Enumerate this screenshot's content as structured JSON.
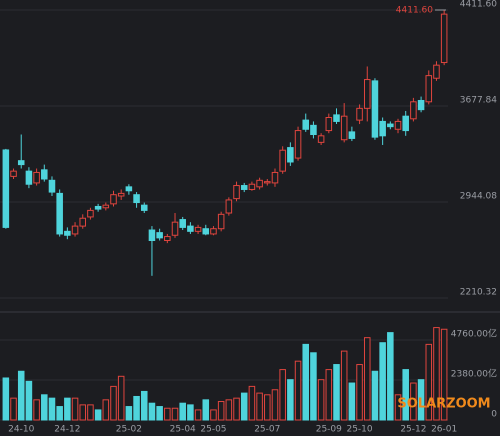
{
  "chart_data": {
    "type": "candlestick",
    "categories": [
      null,
      null,
      "24-10",
      null,
      null,
      null,
      null,
      null,
      "24-12",
      null,
      null,
      null,
      null,
      null,
      null,
      null,
      "25-02",
      null,
      null,
      null,
      null,
      null,
      null,
      "25-04",
      null,
      null,
      null,
      "25-05",
      null,
      null,
      null,
      null,
      null,
      null,
      "25-07",
      null,
      null,
      null,
      null,
      null,
      null,
      null,
      "25-09",
      null,
      null,
      null,
      "25-10",
      null,
      null,
      null,
      null,
      null,
      null,
      "25-12",
      null,
      null,
      null,
      "26-01"
    ],
    "open": [
      3342,
      3140,
      3260,
      3180,
      3090,
      3190,
      3110,
      3010,
      2720,
      2700,
      2760,
      2830,
      2910,
      2900,
      2930,
      2990,
      3060,
      3000,
      2920,
      2730,
      2710,
      2650,
      2690,
      2810,
      2760,
      2720,
      2740,
      2700,
      2740,
      2860,
      2970,
      3070,
      3040,
      3060,
      3090,
      3090,
      3180,
      3360,
      3280,
      3570,
      3530,
      3400,
      3490,
      3610,
      3420,
      3480,
      3570,
      3660,
      3870,
      3560,
      3540,
      3500,
      3600,
      3580,
      3720,
      3710,
      3890,
      4010
    ],
    "high": [
      3350,
      3200,
      3460,
      3210,
      3200,
      3230,
      3140,
      3040,
      2750,
      2790,
      2850,
      2900,
      2930,
      2940,
      3030,
      3040,
      3080,
      3020,
      2940,
      2760,
      2740,
      2700,
      2860,
      2830,
      2790,
      2770,
      2770,
      2760,
      2870,
      2980,
      3100,
      3090,
      3100,
      3130,
      3120,
      3200,
      3370,
      3400,
      3520,
      3620,
      3560,
      3470,
      3620,
      3660,
      3700,
      3520,
      3690,
      3980,
      3890,
      3590,
      3560,
      3580,
      3640,
      3740,
      3750,
      3950,
      4020,
      4411.6
    ],
    "low": [
      2740,
      3120,
      3200,
      3050,
      3070,
      3100,
      2990,
      2680,
      2660,
      2680,
      2740,
      2810,
      2870,
      2880,
      2910,
      2960,
      3000,
      2900,
      2860,
      2380,
      2650,
      2630,
      2670,
      2730,
      2700,
      2700,
      2690,
      2690,
      2720,
      2840,
      2950,
      3020,
      3030,
      3040,
      3070,
      3060,
      3160,
      3220,
      3260,
      3480,
      3430,
      3380,
      3470,
      3540,
      3400,
      3410,
      3540,
      3560,
      3420,
      3380,
      3500,
      3470,
      3450,
      3560,
      3630,
      3690,
      3870,
      3990
    ],
    "close": [
      2750,
      3180,
      3230,
      3080,
      3170,
      3120,
      3020,
      2700,
      2690,
      2760,
      2820,
      2880,
      2890,
      2920,
      3000,
      3010,
      3030,
      2940,
      2880,
      2650,
      2670,
      2680,
      2790,
      2750,
      2720,
      2750,
      2700,
      2740,
      2850,
      2960,
      3070,
      3040,
      3080,
      3110,
      3100,
      3170,
      3340,
      3250,
      3490,
      3500,
      3460,
      3450,
      3590,
      3560,
      3600,
      3430,
      3660,
      3880,
      3440,
      3450,
      3520,
      3560,
      3490,
      3710,
      3650,
      3910,
      3990,
      4380
    ],
    "ylim": [
      2157,
      4488
    ],
    "yticks": [
      {
        "value": 2210.32,
        "label": "2210.32"
      },
      {
        "value": 2944.08,
        "label": "2944.08"
      },
      {
        "value": 3677.84,
        "label": "3677.84"
      },
      {
        "value": 4411.6,
        "label": "4411.60"
      }
    ],
    "up_color": "#e0453e",
    "down_color": "#4fd4dc",
    "annotation": {
      "text": "4411.60",
      "value": 4411.6
    },
    "volume": {
      "values": [
        2500,
        1300,
        2900,
        2300,
        1200,
        1500,
        1300,
        800,
        1300,
        1300,
        900,
        900,
        600,
        1200,
        2000,
        2600,
        800,
        1400,
        1700,
        1000,
        800,
        700,
        700,
        1000,
        900,
        600,
        1200,
        600,
        1100,
        1200,
        1300,
        1600,
        2000,
        1600,
        1500,
        1800,
        3000,
        2400,
        3500,
        4500,
        4000,
        2400,
        3000,
        3300,
        4100,
        2200,
        3300,
        4900,
        2900,
        4600,
        5200,
        1500,
        3000,
        2200,
        2400,
        4500,
        5500,
        5400
      ],
      "ylim": [
        0,
        6070
      ],
      "yticks": [
        0,
        {
          "value": 2380,
          "label": "2380.00亿"
        },
        {
          "value": 4760,
          "label": "4760.00亿"
        }
      ]
    },
    "watermark": "SOLARZOOM"
  }
}
